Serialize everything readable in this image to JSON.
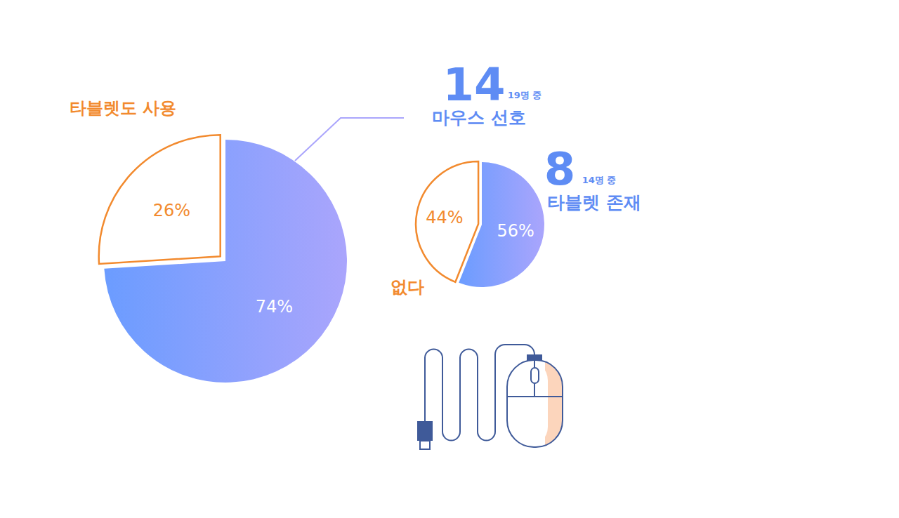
{
  "chart_data": [
    {
      "type": "pie",
      "categories": [
        "마우스 선호",
        "타블렛도 사용"
      ],
      "values": [
        74,
        26
      ],
      "value_labels": [
        "74%",
        "26%"
      ],
      "data_labels": true,
      "colors": [
        "#aaa5fc",
        "#f28a2e"
      ],
      "annotation": {
        "value": 14,
        "note": "19명 중"
      }
    },
    {
      "type": "pie",
      "categories": [
        "타블렛 존재",
        "없다"
      ],
      "values": [
        56,
        44
      ],
      "value_labels": [
        "56%",
        "44%"
      ],
      "data_labels": true,
      "colors": [
        "#aaa5fc",
        "#f28a2e"
      ],
      "annotation": {
        "value": 8,
        "note": "14명 중"
      }
    }
  ]
}
